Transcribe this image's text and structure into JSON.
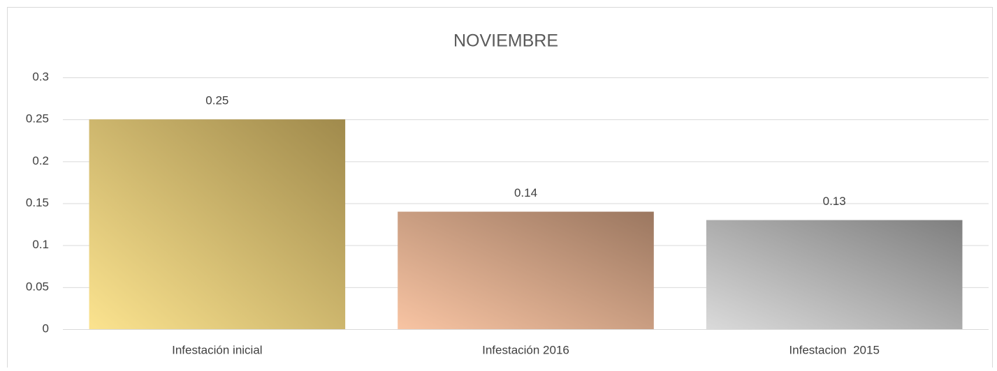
{
  "chart_data": {
    "type": "bar",
    "title": "NOVIEMBRE",
    "categories": [
      "Infestación inicial",
      "Infestación 2016",
      "Infestacion  2015"
    ],
    "values": [
      0.25,
      0.14,
      0.13
    ],
    "colors": [
      [
        "#fbe38f",
        "#a08a4c"
      ],
      [
        "#f8c4a3",
        "#9b7760"
      ],
      [
        "#dadada",
        "#7f7f7f"
      ]
    ],
    "ylim": [
      0,
      0.3
    ],
    "yticks": [
      0,
      0.05,
      0.1,
      0.15,
      0.2,
      0.25,
      0.3
    ],
    "grid": true
  }
}
